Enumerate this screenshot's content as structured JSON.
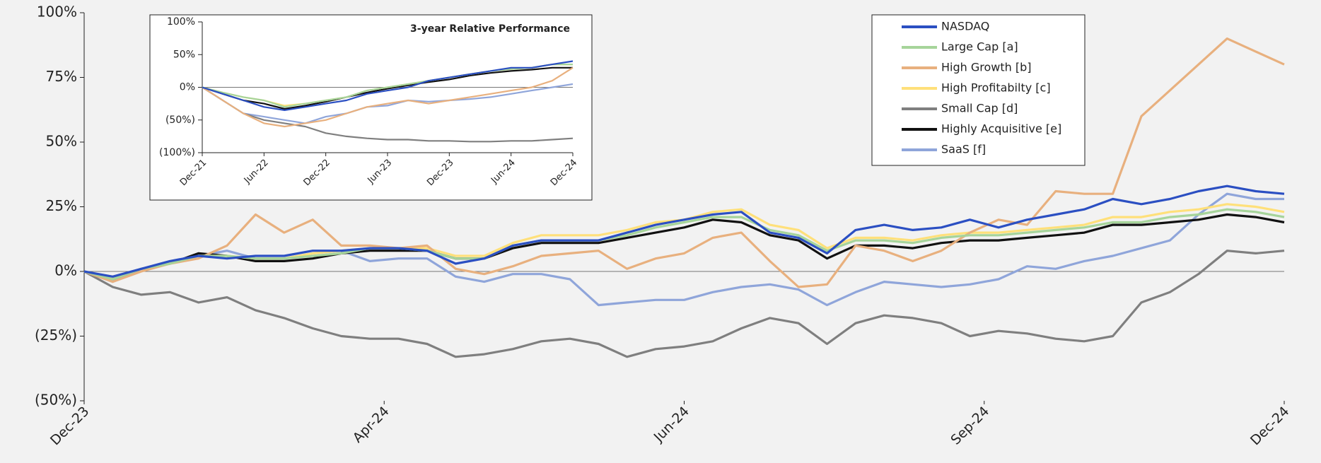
{
  "chart_data": [
    {
      "type": "line",
      "legend": "upper right",
      "x": [
        0,
        6,
        12,
        18,
        24,
        30,
        36,
        42,
        48,
        54,
        60,
        66,
        72,
        78,
        84,
        90,
        96,
        102,
        108,
        114,
        120,
        126,
        132,
        138,
        144,
        150,
        156,
        162,
        168,
        174,
        180,
        186,
        192,
        198,
        204,
        210,
        216,
        222,
        228,
        234,
        240,
        246,
        252
      ],
      "xlim": [
        0,
        252
      ],
      "xticks": [
        {
          "value": 0,
          "label": "Dec-23"
        },
        {
          "value": 63,
          "label": "Apr-24"
        },
        {
          "value": 126,
          "label": "Jun-24"
        },
        {
          "value": 189,
          "label": "Sep-24"
        },
        {
          "value": 252,
          "label": "Dec-24"
        }
      ],
      "ylim": [
        -50,
        100
      ],
      "yticks": [
        {
          "value": 100,
          "label": "100%"
        },
        {
          "value": 75,
          "label": "75%"
        },
        {
          "value": 50,
          "label": "50%"
        },
        {
          "value": 25,
          "label": "25%"
        },
        {
          "value": 0,
          "label": "0%"
        },
        {
          "value": -25,
          "label": "(25%)"
        },
        {
          "value": -50,
          "label": "(50%)"
        }
      ],
      "series": [
        {
          "name": "NASDAQ",
          "color": "#2b4fc2",
          "values": [
            0,
            -2,
            1,
            4,
            6,
            5,
            6,
            6,
            8,
            8,
            9,
            9,
            8,
            3,
            5,
            10,
            12,
            12,
            12,
            15,
            18,
            20,
            22,
            23,
            15,
            13,
            7,
            16,
            18,
            16,
            17,
            20,
            17,
            20,
            22,
            24,
            28,
            26,
            28,
            31,
            33,
            31,
            30
          ]
        },
        {
          "name": "Large Cap [a]",
          "color": "#a6d49a",
          "values": [
            0,
            -3,
            1,
            3,
            6,
            6,
            5,
            5,
            6,
            7,
            9,
            9,
            8,
            5,
            5,
            10,
            12,
            12,
            12,
            14,
            17,
            19,
            21,
            21,
            16,
            14,
            8,
            12,
            12,
            11,
            13,
            14,
            14,
            15,
            16,
            17,
            19,
            19,
            21,
            22,
            24,
            23,
            21
          ]
        },
        {
          "name": "High Growth [b]",
          "color": "#e8b07e",
          "values": [
            0,
            -4,
            0,
            3,
            5,
            10,
            22,
            15,
            20,
            10,
            10,
            9,
            10,
            1,
            -1,
            2,
            6,
            7,
            8,
            1,
            5,
            7,
            13,
            15,
            4,
            -6,
            -5,
            10,
            8,
            4,
            8,
            15,
            20,
            18,
            31,
            30,
            30,
            60,
            70,
            80,
            90,
            85,
            80
          ]
        },
        {
          "name": "High Profitabilty [c]",
          "color": "#ffe07a",
          "values": [
            0,
            -3,
            1,
            3,
            6,
            6,
            5,
            5,
            7,
            8,
            9,
            9,
            9,
            6,
            6,
            11,
            14,
            14,
            14,
            16,
            19,
            20,
            23,
            24,
            18,
            16,
            9,
            13,
            13,
            12,
            14,
            15,
            15,
            16,
            17,
            18,
            21,
            21,
            23,
            24,
            26,
            25,
            23
          ]
        },
        {
          "name": "Small Cap [d]",
          "color": "#7f7f7f",
          "values": [
            0,
            -6,
            -9,
            -8,
            -12,
            -10,
            -15,
            -18,
            -22,
            -25,
            -26,
            -26,
            -28,
            -33,
            -32,
            -30,
            -27,
            -26,
            -28,
            -33,
            -30,
            -29,
            -27,
            -22,
            -18,
            -20,
            -28,
            -20,
            -17,
            -18,
            -20,
            -25,
            -23,
            -24,
            -26,
            -27,
            -25,
            -12,
            -8,
            -1,
            8,
            7,
            8
          ]
        },
        {
          "name": "Highly Acquisitive [e]",
          "color": "#111111",
          "values": [
            0,
            -3,
            1,
            3,
            7,
            6,
            4,
            4,
            5,
            7,
            8,
            8,
            8,
            5,
            5,
            9,
            11,
            11,
            11,
            13,
            15,
            17,
            20,
            19,
            14,
            12,
            5,
            10,
            10,
            9,
            11,
            12,
            12,
            13,
            14,
            15,
            18,
            18,
            19,
            20,
            22,
            21,
            19
          ]
        },
        {
          "name": "SaaS [f]",
          "color": "#8fa5da",
          "values": [
            0,
            -4,
            1,
            3,
            6,
            8,
            5,
            5,
            7,
            8,
            4,
            5,
            5,
            -2,
            -4,
            -1,
            -1,
            -3,
            -13,
            -12,
            -11,
            -11,
            -8,
            -6,
            -5,
            -7,
            -13,
            -8,
            -4,
            -5,
            -6,
            -5,
            -3,
            2,
            1,
            4,
            6,
            9,
            12,
            22,
            30,
            28,
            28
          ]
        }
      ]
    },
    {
      "type": "line",
      "title": "3-year Relative Performance",
      "x": [
        0,
        2,
        4,
        6,
        8,
        10,
        12,
        14,
        16,
        18,
        20,
        22,
        24,
        26,
        28,
        30,
        32,
        34,
        36
      ],
      "xlim": [
        0,
        36
      ],
      "xticks": [
        {
          "value": 0,
          "label": "Dec-21"
        },
        {
          "value": 6,
          "label": "Jun-22"
        },
        {
          "value": 12,
          "label": "Dec-22"
        },
        {
          "value": 18,
          "label": "Jun-23"
        },
        {
          "value": 24,
          "label": "Dec-23"
        },
        {
          "value": 30,
          "label": "Jun-24"
        },
        {
          "value": 36,
          "label": "Dec-24"
        }
      ],
      "ylim": [
        -100,
        100
      ],
      "yticks": [
        {
          "value": 100,
          "label": "100%"
        },
        {
          "value": 50,
          "label": "50%"
        },
        {
          "value": 0,
          "label": "0%"
        },
        {
          "value": -50,
          "label": "(50%)"
        },
        {
          "value": -100,
          "label": "(100%)"
        }
      ],
      "series": [
        {
          "color": "#2b4fc2",
          "values": [
            0,
            -10,
            -20,
            -30,
            -35,
            -30,
            -25,
            -20,
            -10,
            -5,
            0,
            10,
            15,
            20,
            25,
            30,
            30,
            35,
            40
          ]
        },
        {
          "color": "#a6d49a",
          "values": [
            0,
            -8,
            -15,
            -20,
            -30,
            -25,
            -20,
            -15,
            -5,
            0,
            5,
            10,
            15,
            20,
            25,
            28,
            30,
            35,
            35
          ]
        },
        {
          "color": "#e8b07e",
          "values": [
            0,
            -20,
            -40,
            -55,
            -60,
            -55,
            -50,
            -40,
            -30,
            -25,
            -20,
            -25,
            -20,
            -15,
            -10,
            -5,
            0,
            10,
            30
          ]
        },
        {
          "color": "#ffe07a",
          "values": [
            0,
            -8,
            -15,
            -20,
            -28,
            -25,
            -20,
            -15,
            -5,
            0,
            5,
            10,
            15,
            20,
            25,
            28,
            30,
            35,
            35
          ]
        },
        {
          "color": "#7f7f7f",
          "values": [
            0,
            -20,
            -40,
            -50,
            -55,
            -60,
            -70,
            -75,
            -78,
            -80,
            -80,
            -82,
            -82,
            -83,
            -83,
            -82,
            -82,
            -80,
            -78
          ]
        },
        {
          "color": "#111111",
          "values": [
            0,
            -10,
            -20,
            -25,
            -33,
            -28,
            -22,
            -15,
            -8,
            -2,
            3,
            8,
            12,
            18,
            22,
            25,
            27,
            30,
            30
          ]
        },
        {
          "color": "#8fa5da",
          "values": [
            0,
            -20,
            -40,
            -45,
            -50,
            -55,
            -45,
            -40,
            -30,
            -28,
            -20,
            -22,
            -20,
            -18,
            -15,
            -10,
            -5,
            0,
            5
          ]
        }
      ]
    }
  ]
}
